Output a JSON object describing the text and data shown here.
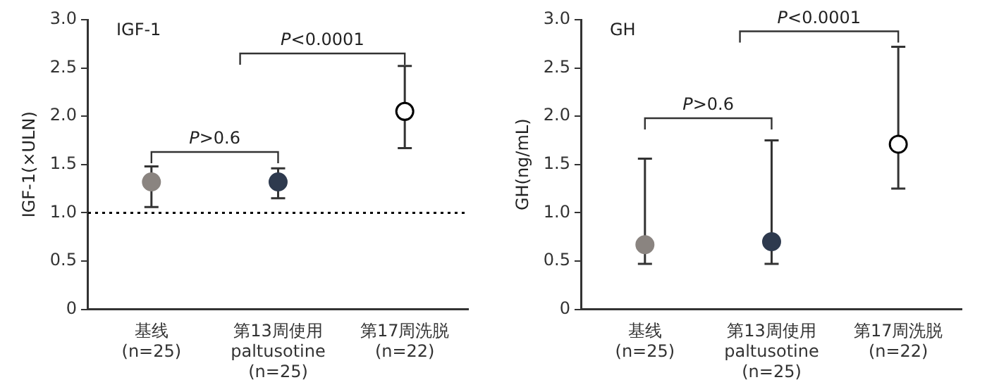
{
  "chart_data": [
    {
      "type": "scatter",
      "title": "IGF-1",
      "ylabel": "IGF-1(×ULN)",
      "categories": [
        "基线\n(n=25)",
        "第13周使用\npaltusotine\n(n=25)",
        "第17周洗脱\n(n=22)"
      ],
      "series": [
        {
          "colors": [
            "#8a8480",
            "#2e3a4e",
            "#ffffff"
          ],
          "values": [
            1.32,
            1.32,
            2.05
          ],
          "errors": [
            [
              1.06,
              1.48
            ],
            [
              1.15,
              1.46
            ],
            [
              1.67,
              2.52
            ]
          ]
        }
      ],
      "ylim": [
        0,
        3
      ],
      "yticks": [
        {
          "value": 0,
          "label": "0"
        },
        0.5,
        {
          "value": 1,
          "label": "1.0"
        },
        1.5,
        {
          "value": 2,
          "label": "2.0"
        },
        2.5,
        {
          "value": 3,
          "label": "3.0"
        }
      ],
      "ref_lines": [
        {
          "axis": "y",
          "value": 1,
          "line_style": "dotted",
          "color": "#000000"
        }
      ],
      "annotations": [
        "P>0.6",
        "P<0.0001"
      ],
      "marker": "circle",
      "grid": false,
      "legend": false
    },
    {
      "type": "scatter",
      "title": "GH",
      "ylabel": "GH(ng/mL)",
      "categories": [
        "基线\n(n=25)",
        "第13周使用\npaltusotine\n(n=25)",
        "第17周洗脱\n(n=22)"
      ],
      "series": [
        {
          "colors": [
            "#8a8480",
            "#2e3a4e",
            "#ffffff"
          ],
          "values": [
            0.67,
            0.7,
            1.71
          ],
          "errors": [
            [
              0.47,
              1.56
            ],
            [
              0.47,
              1.75
            ],
            [
              1.25,
              2.72
            ]
          ]
        }
      ],
      "ylim": [
        0,
        3
      ],
      "yticks": [
        {
          "value": 0,
          "label": "0"
        },
        0.5,
        {
          "value": 1,
          "label": "1.0"
        },
        1.5,
        {
          "value": 2,
          "label": "2.0"
        },
        2.5,
        {
          "value": 3,
          "label": "3.0"
        }
      ],
      "annotations": [
        "P>0.6",
        "P<0.0001"
      ],
      "marker": "circle",
      "grid": false,
      "legend": false
    }
  ]
}
